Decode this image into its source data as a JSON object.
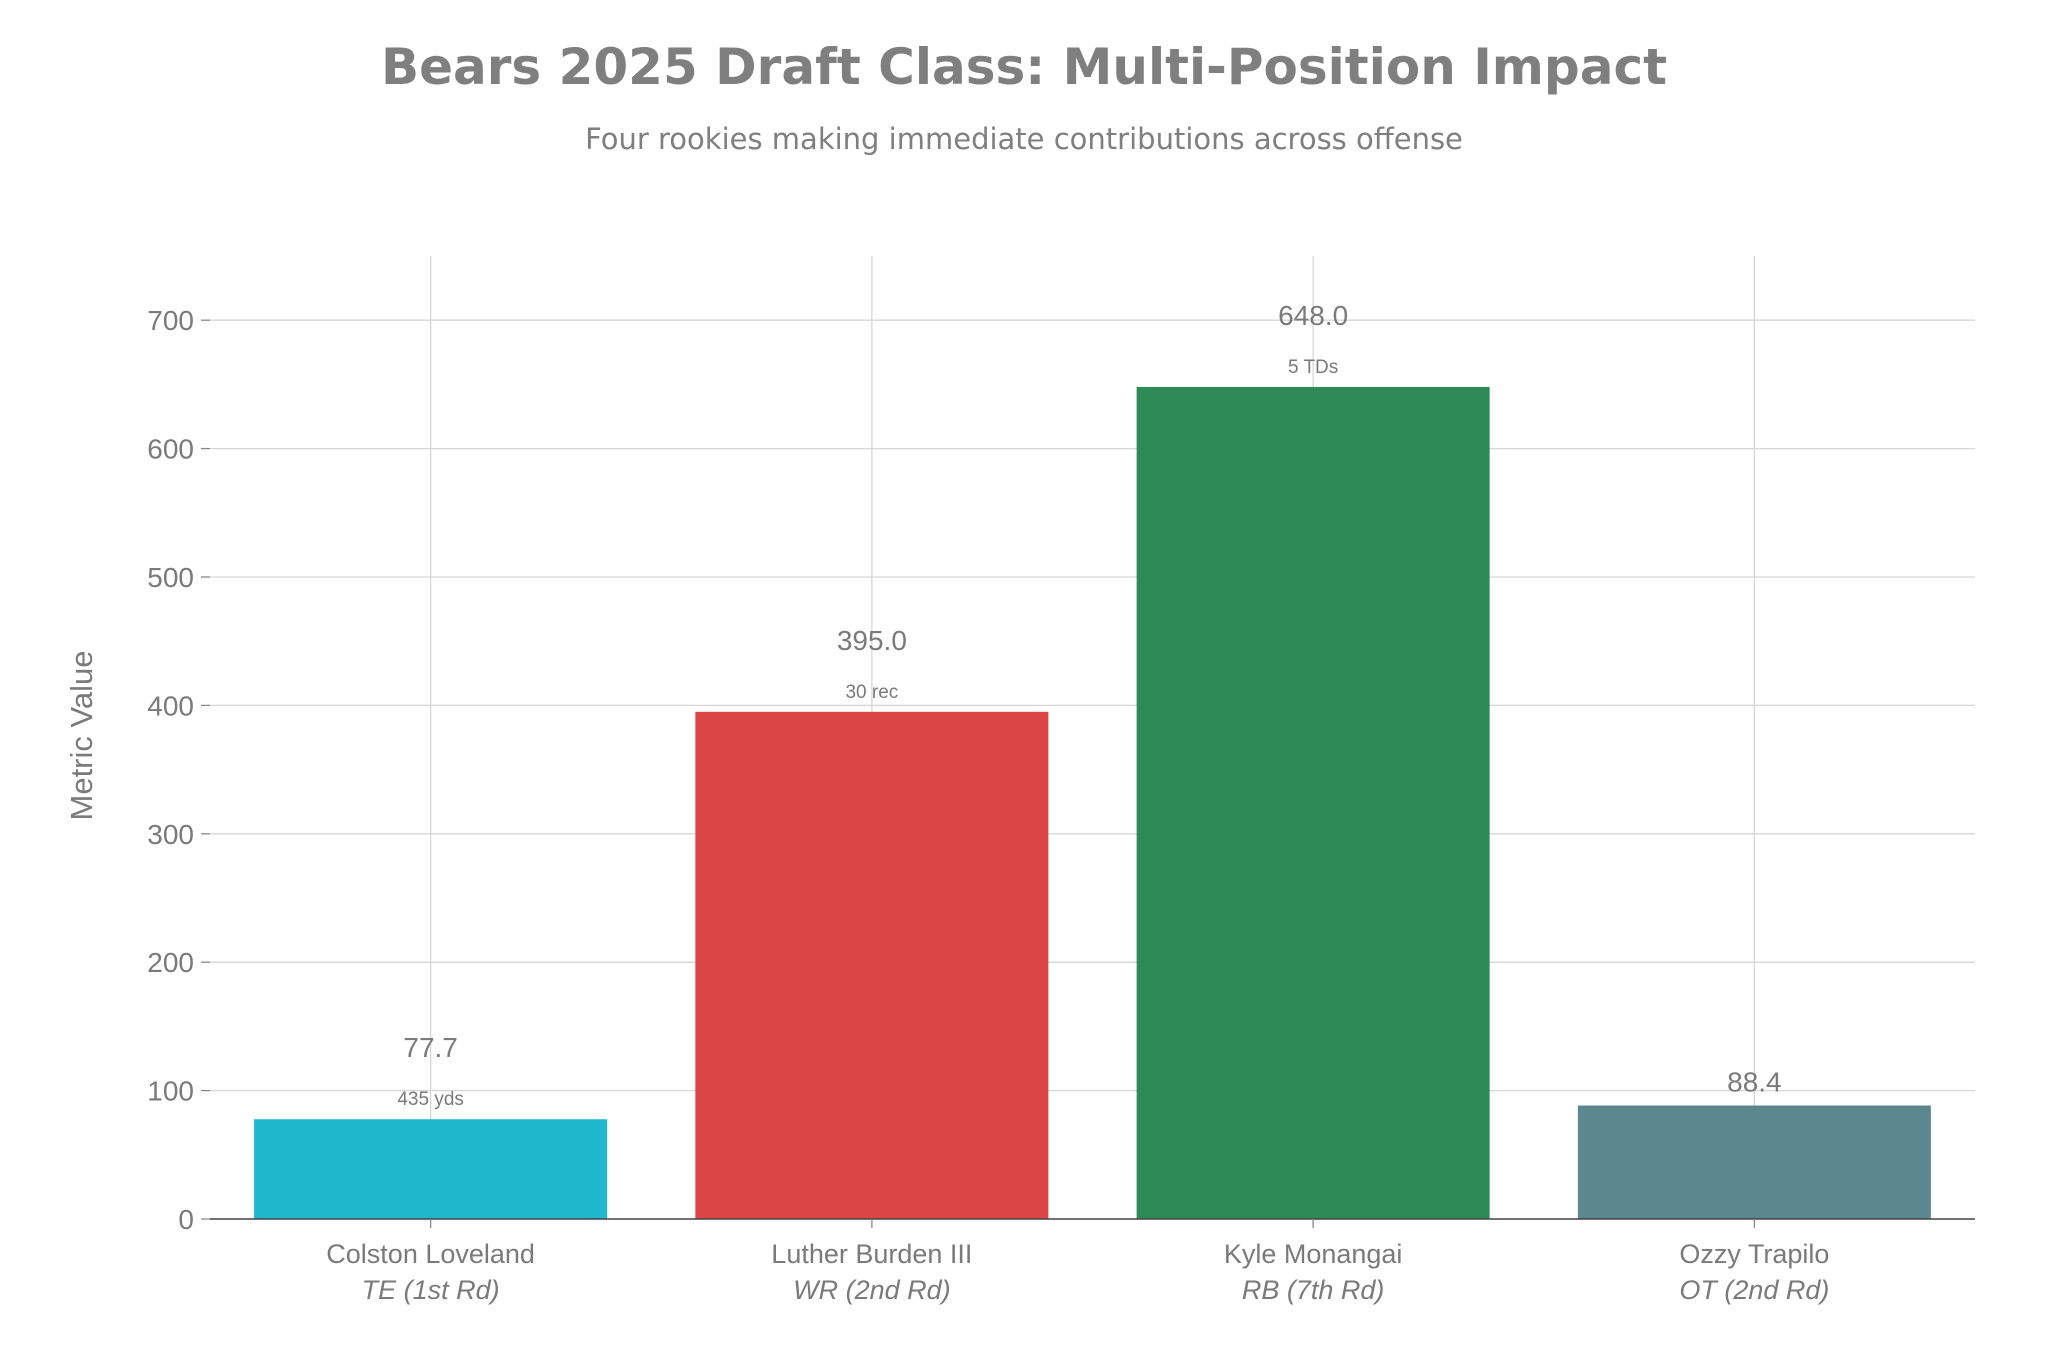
{
  "chart_data": {
    "type": "bar",
    "title": "Bears 2025 Draft Class: Multi-Position Impact",
    "subtitle": "Four rookies making immediate contributions across offense",
    "ylabel": "Metric Value",
    "xlabel": "",
    "ylim": [
      0,
      750
    ],
    "yticks": [
      0,
      100,
      200,
      300,
      400,
      500,
      600,
      700
    ],
    "grid": true,
    "legend": "none",
    "categories": [
      "Colston Loveland",
      "Luther Burden III",
      "Kyle Monangai",
      "Ozzy Trapilo"
    ],
    "subcategories": [
      "TE (1st Rd)",
      "WR (2nd Rd)",
      "RB (7th Rd)",
      "OT (2nd Rd)"
    ],
    "values": [
      77.7,
      395.0,
      648.0,
      88.4
    ],
    "value_labels": [
      "77.7",
      "395.0",
      "648.0",
      "88.4"
    ],
    "annotations": [
      "435 yds",
      "30 rec",
      "5 TDs",
      ""
    ],
    "colors": [
      "#1fb8cd",
      "#db4545",
      "#2e8b57",
      "#5d878f"
    ]
  }
}
